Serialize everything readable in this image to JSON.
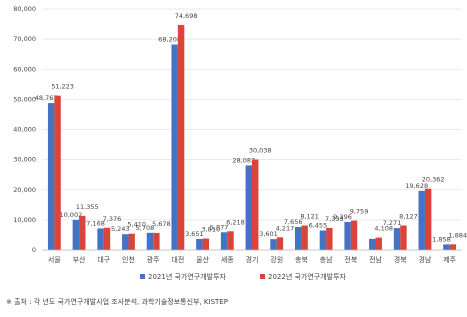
{
  "chart_data": {
    "type": "bar",
    "categories": [
      "서울",
      "부산",
      "대구",
      "인천",
      "광주",
      "대전",
      "울산",
      "세종",
      "경기",
      "강원",
      "충북",
      "충남",
      "전북",
      "전남",
      "경북",
      "경남",
      "제주"
    ],
    "series": [
      {
        "name": "2021년 국가연구개발투자",
        "color": "#4472c4",
        "values": [
          48767,
          10002,
          7168,
          5243,
          5708,
          68208,
          3651,
          5877,
          28082,
          3601,
          7656,
          6455,
          9296,
          3700,
          7271,
          19628,
          1858
        ],
        "value_labels": [
          "48,767",
          "10,002",
          "7,168",
          "5,243",
          "5,708",
          "68,208",
          "3,651",
          "5,877",
          "28,082",
          "3,601",
          "7,656",
          "6,455",
          "9,296",
          null,
          "7,271",
          "19,628",
          "1,858"
        ]
      },
      {
        "name": "2022년 국가연구개발투자",
        "color": "#d9453b",
        "values": [
          51223,
          11355,
          7376,
          5410,
          5678,
          74698,
          3810,
          6218,
          30038,
          4217,
          8121,
          7333,
          9759,
          4108,
          8127,
          20362,
          1884
        ],
        "value_labels": [
          "51,223",
          "11,355",
          "7,376",
          "5,410",
          "5,678",
          "74,698",
          "3,810",
          "6,218",
          "30,038",
          "4,217",
          "8,121",
          "7,333",
          "9,759",
          "4,108",
          "8,127",
          "20,362",
          "1,884"
        ]
      }
    ],
    "ylim": [
      0,
      80000
    ],
    "yticks": [
      0,
      {
        "value": 10000,
        "label": "10,000"
      },
      {
        "value": 20000,
        "label": "20,000"
      },
      {
        "value": 30000,
        "label": "30,000"
      },
      {
        "value": 40000,
        "label": "40,000"
      },
      {
        "value": 50000,
        "label": "50,000"
      },
      {
        "value": 60000,
        "label": "60,000"
      },
      {
        "value": 70000,
        "label": "70,000"
      },
      {
        "value": 80000,
        "label": "80,000"
      }
    ],
    "grid": true,
    "legend": "bottom",
    "footnote": "※ 출처 : 각 년도 국가연구개발사업 조사분석, 과학기술정보통신부, KISTEP"
  }
}
